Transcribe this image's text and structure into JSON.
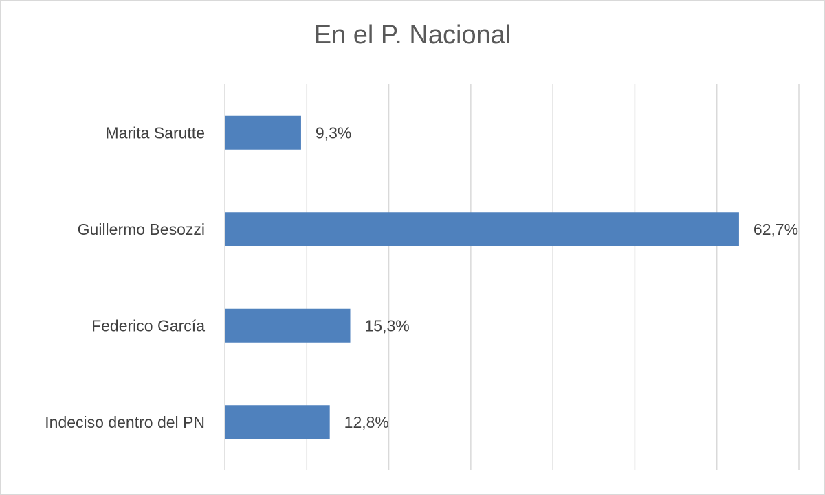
{
  "chart_data": {
    "type": "bar",
    "orientation": "horizontal",
    "title": "En el P. Nacional",
    "categories": [
      "Marita Sarutte",
      "Guillermo Besozzi",
      "Federico García",
      "Indeciso dentro del PN"
    ],
    "values": [
      9.3,
      62.7,
      15.3,
      12.8
    ],
    "data_labels": [
      "9,3%",
      "62,7%",
      "15,3%",
      "12,8%"
    ],
    "xlim": [
      0,
      70
    ],
    "grid": true,
    "legend": "none",
    "bar_color": "#4f81bd",
    "gridline_color": "#d9d9d9"
  }
}
